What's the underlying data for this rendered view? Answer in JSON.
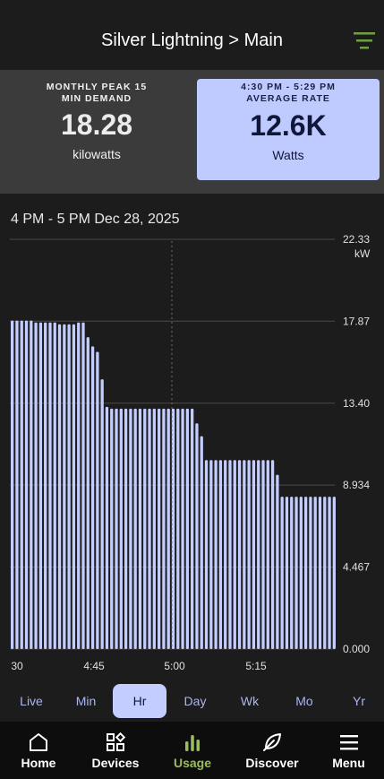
{
  "header": {
    "title": "Silver Lightning > Main",
    "filter_icon": "filter-icon"
  },
  "stats": {
    "left": {
      "caption_line1": "MONTHLY PEAK 15",
      "caption_line2": "MIN DEMAND",
      "value": "18.28",
      "unit": "kilowatts"
    },
    "right": {
      "caption_line1": "4:30 PM - 5:29 PM",
      "caption_line2": "AVERAGE RATE",
      "value": "12.6K",
      "unit": "Watts"
    }
  },
  "chart_title": "4 PM - 5 PM Dec 28, 2025",
  "chart_data": {
    "type": "bar",
    "y_unit": "kW",
    "ylim": [
      0,
      22.33
    ],
    "y_ticks": [
      "22.33",
      "17.87",
      "13.40",
      "8.934",
      "4.467",
      "0.000"
    ],
    "x_ticks": [
      "30",
      "4:45",
      "5:00",
      "5:15"
    ],
    "grid": true,
    "values": [
      17.9,
      17.9,
      17.9,
      17.9,
      17.9,
      17.8,
      17.8,
      17.8,
      17.8,
      17.8,
      17.7,
      17.7,
      17.7,
      17.7,
      17.8,
      17.8,
      17.0,
      16.5,
      16.2,
      14.7,
      13.2,
      13.1,
      13.1,
      13.1,
      13.1,
      13.1,
      13.1,
      13.1,
      13.1,
      13.1,
      13.1,
      13.1,
      13.1,
      13.1,
      13.1,
      13.1,
      13.1,
      13.1,
      13.1,
      12.3,
      11.6,
      10.3,
      10.3,
      10.3,
      10.3,
      10.3,
      10.3,
      10.3,
      10.3,
      10.3,
      10.3,
      10.3,
      10.3,
      10.3,
      10.3,
      10.3,
      9.5,
      8.3,
      8.3,
      8.3,
      8.3,
      8.3,
      8.3,
      8.3,
      8.3,
      8.3,
      8.3,
      8.3,
      8.3
    ],
    "bar_color": "#c3cdff"
  },
  "periods": [
    "Live",
    "Min",
    "Hr",
    "Day",
    "Wk",
    "Mo",
    "Yr"
  ],
  "active_period": "Hr",
  "nav": {
    "items": [
      {
        "label": "Home",
        "icon": "home-icon"
      },
      {
        "label": "Devices",
        "icon": "devices-icon"
      },
      {
        "label": "Usage",
        "icon": "usage-icon"
      },
      {
        "label": "Discover",
        "icon": "discover-icon"
      },
      {
        "label": "Menu",
        "icon": "menu-icon"
      }
    ],
    "active": "Usage"
  },
  "colors": {
    "accent": "#c3cdff",
    "active_nav": "#9bbd5c",
    "stat_card": "#bfcaff"
  }
}
